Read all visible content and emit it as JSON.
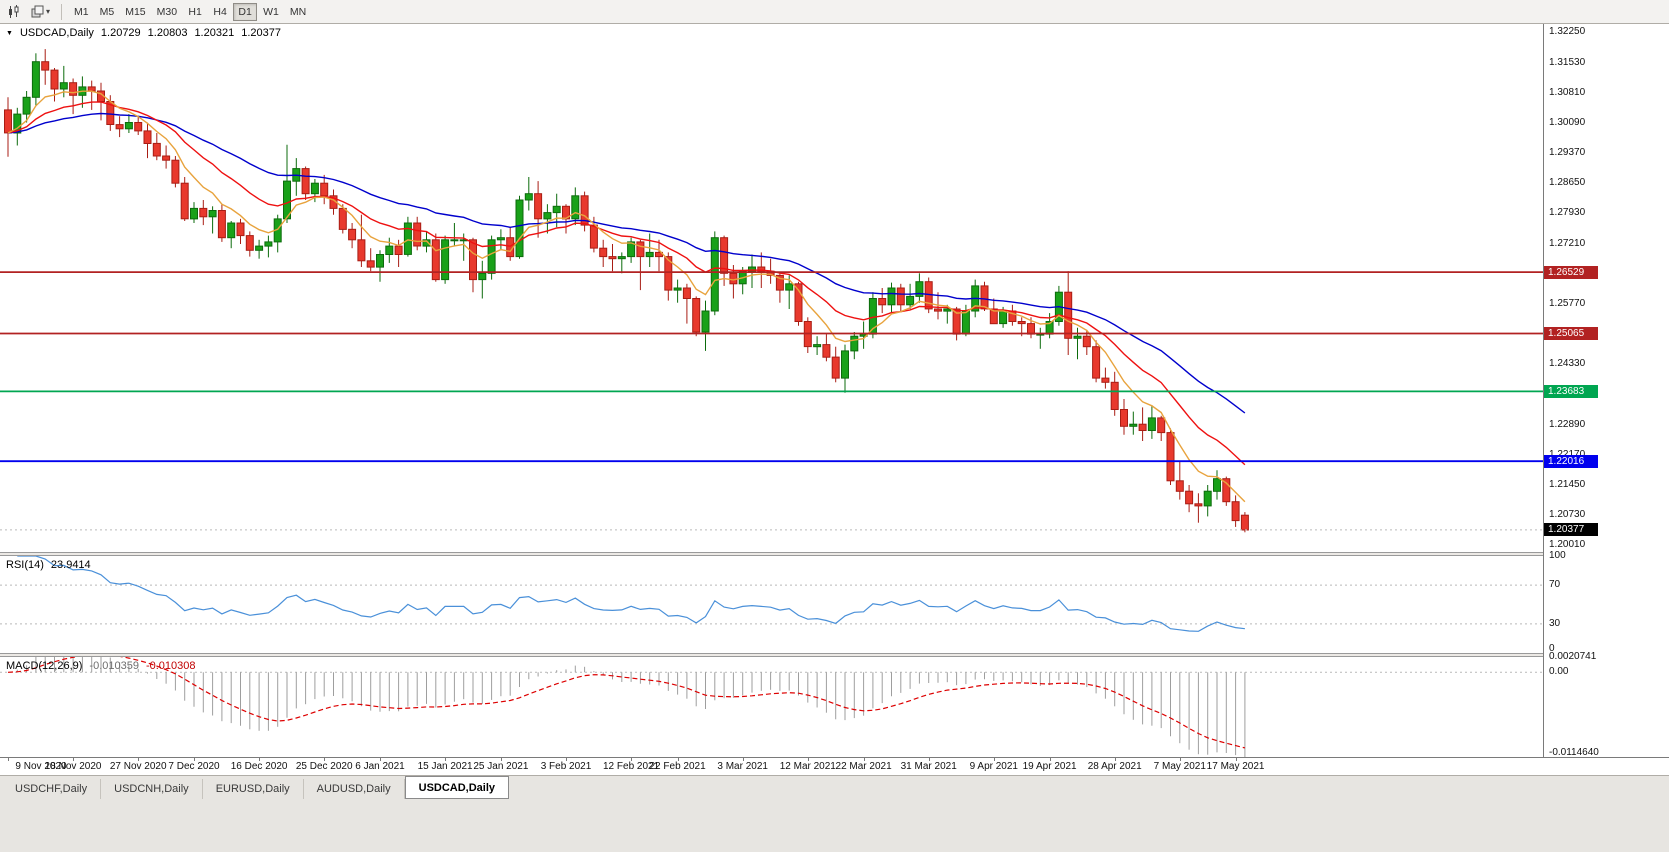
{
  "icons": {
    "collapse": "▼",
    "caret": "▾"
  },
  "toolbar": {
    "icon_buttons": [
      "candlestick-chart-icon",
      "chart-style-dropdown-icon"
    ],
    "timeframes": [
      "M1",
      "M5",
      "M15",
      "M30",
      "H1",
      "H4",
      "D1",
      "W1",
      "MN"
    ],
    "active_timeframe": "D1"
  },
  "tabs": [
    {
      "label": "USDCHF,Daily",
      "active": false
    },
    {
      "label": "USDCNH,Daily",
      "active": false
    },
    {
      "label": "EURUSD,Daily",
      "active": false
    },
    {
      "label": "AUDUSD,Daily",
      "active": false
    },
    {
      "label": "USDCAD,Daily",
      "active": true
    }
  ],
  "chart_data": [
    {
      "type": "candlestick",
      "header": {
        "symbol": "USDCAD,Daily",
        "open": "1.20729",
        "high": "1.20803",
        "low": "1.20321",
        "close": "1.20377"
      },
      "ylim": [
        1.1985,
        1.3245
      ],
      "y_ticks": [
        "1.32250",
        "1.31530",
        "1.30810",
        "1.30090",
        "1.29370",
        "1.28650",
        "1.27930",
        "1.27210",
        "1.26490",
        "1.25770",
        "1.25050",
        "1.24330",
        "1.23610",
        "1.22890",
        "1.22170",
        "1.21450",
        "1.20730",
        "1.20010"
      ],
      "x_ticks": [
        {
          "i": 0,
          "label": "9 Nov 2020"
        },
        {
          "i": 7,
          "label": "18 Nov 2020"
        },
        {
          "i": 14,
          "label": "27 Nov 2020"
        },
        {
          "i": 20,
          "label": "7 Dec 2020"
        },
        {
          "i": 27,
          "label": "16 Dec 2020"
        },
        {
          "i": 34,
          "label": "25 Dec 2020"
        },
        {
          "i": 40,
          "label": "6 Jan 2021"
        },
        {
          "i": 47,
          "label": "15 Jan 2021"
        },
        {
          "i": 53,
          "label": "25 Jan 2021"
        },
        {
          "i": 60,
          "label": "3 Feb 2021"
        },
        {
          "i": 67,
          "label": "12 Feb 2021"
        },
        {
          "i": 72,
          "label": "22 Feb 2021"
        },
        {
          "i": 79,
          "label": "3 Mar 2021"
        },
        {
          "i": 86,
          "label": "12 Mar 2021"
        },
        {
          "i": 92,
          "label": "22 Mar 2021"
        },
        {
          "i": 99,
          "label": "31 Mar 2021"
        },
        {
          "i": 106,
          "label": "9 Apr 2021"
        },
        {
          "i": 112,
          "label": "19 Apr 2021"
        },
        {
          "i": 119,
          "label": "28 Apr 2021"
        },
        {
          "i": 126,
          "label": "7 May 2021"
        },
        {
          "i": 132,
          "label": "17 May 2021"
        }
      ],
      "hlines": [
        {
          "value": 1.26529,
          "label": "1.26529",
          "color": "#b22222"
        },
        {
          "value": 1.25065,
          "label": "1.25065",
          "color": "#b22222"
        },
        {
          "value": 1.23683,
          "label": "1.23683",
          "color": "#00a651"
        },
        {
          "value": 1.22016,
          "label": "1.22016",
          "color": "#0000ee"
        }
      ],
      "bid": {
        "value": 1.20377,
        "label": "1.20377",
        "color": "#000000"
      },
      "moving_averages": [
        {
          "period": 34,
          "color": "#0000cc"
        },
        {
          "period": 16,
          "color": "#ee1111"
        },
        {
          "period": 7,
          "color": "#e8a33d"
        }
      ],
      "colors": {
        "up": "#19a119",
        "up_border": "#0c6b0c",
        "down": "#e8392d",
        "down_border": "#a81d14"
      },
      "ohlc": [
        [
          1.304,
          1.307,
          1.2928,
          1.2985
        ],
        [
          1.2985,
          1.3045,
          1.2955,
          1.303
        ],
        [
          1.303,
          1.3085,
          1.301,
          1.307
        ],
        [
          1.307,
          1.3175,
          1.305,
          1.3155
        ],
        [
          1.3155,
          1.3185,
          1.31,
          1.3135
        ],
        [
          1.3135,
          1.314,
          1.306,
          1.309
        ],
        [
          1.309,
          1.3145,
          1.307,
          1.3105
        ],
        [
          1.3105,
          1.3115,
          1.303,
          1.3075
        ],
        [
          1.3075,
          1.312,
          1.3045,
          1.3095
        ],
        [
          1.3095,
          1.311,
          1.304,
          1.3085
        ],
        [
          1.3085,
          1.3105,
          1.3015,
          1.306
        ],
        [
          1.306,
          1.3075,
          1.299,
          1.3005
        ],
        [
          1.3005,
          1.3025,
          1.2975,
          1.2995
        ],
        [
          1.2995,
          1.303,
          1.2985,
          1.301
        ],
        [
          1.301,
          1.3025,
          1.298,
          1.299
        ],
        [
          1.299,
          1.301,
          1.2925,
          1.296
        ],
        [
          1.296,
          1.2985,
          1.292,
          1.293
        ],
        [
          1.293,
          1.2955,
          1.29,
          1.292
        ],
        [
          1.292,
          1.293,
          1.2855,
          1.2865
        ],
        [
          1.2865,
          1.288,
          1.2775,
          1.278
        ],
        [
          1.278,
          1.282,
          1.277,
          1.2805
        ],
        [
          1.2805,
          1.2825,
          1.2765,
          1.2785
        ],
        [
          1.2785,
          1.281,
          1.2745,
          1.28
        ],
        [
          1.28,
          1.2815,
          1.2725,
          1.2735
        ],
        [
          1.2735,
          1.2775,
          1.271,
          1.277
        ],
        [
          1.277,
          1.278,
          1.272,
          1.274
        ],
        [
          1.274,
          1.275,
          1.269,
          1.2705
        ],
        [
          1.2705,
          1.273,
          1.2685,
          1.2715
        ],
        [
          1.2715,
          1.274,
          1.2688,
          1.2725
        ],
        [
          1.2725,
          1.279,
          1.27,
          1.278
        ],
        [
          1.278,
          1.2957,
          1.277,
          1.287
        ],
        [
          1.287,
          1.2925,
          1.2835,
          1.29
        ],
        [
          1.29,
          1.2905,
          1.2825,
          1.284
        ],
        [
          1.284,
          1.2875,
          1.282,
          1.2865
        ],
        [
          1.2865,
          1.2885,
          1.2815,
          1.2835
        ],
        [
          1.2835,
          1.285,
          1.279,
          1.2805
        ],
        [
          1.2805,
          1.2815,
          1.2745,
          1.2755
        ],
        [
          1.2755,
          1.277,
          1.271,
          1.273
        ],
        [
          1.273,
          1.279,
          1.2665,
          1.268
        ],
        [
          1.268,
          1.271,
          1.2655,
          1.2665
        ],
        [
          1.2665,
          1.2705,
          1.263,
          1.2695
        ],
        [
          1.2695,
          1.2735,
          1.2675,
          1.2715
        ],
        [
          1.2715,
          1.273,
          1.2665,
          1.2695
        ],
        [
          1.2695,
          1.2785,
          1.269,
          1.277
        ],
        [
          1.277,
          1.2785,
          1.2705,
          1.2715
        ],
        [
          1.2715,
          1.275,
          1.27,
          1.273
        ],
        [
          1.273,
          1.2745,
          1.263,
          1.2635
        ],
        [
          1.2635,
          1.274,
          1.2625,
          1.273
        ],
        [
          1.273,
          1.277,
          1.2715,
          1.273
        ],
        [
          1.273,
          1.2745,
          1.268,
          1.273
        ],
        [
          1.273,
          1.2735,
          1.2605,
          1.2635
        ],
        [
          1.2635,
          1.268,
          1.259,
          1.265
        ],
        [
          1.265,
          1.274,
          1.2635,
          1.273
        ],
        [
          1.273,
          1.2755,
          1.2705,
          1.2735
        ],
        [
          1.2735,
          1.276,
          1.268,
          1.269
        ],
        [
          1.269,
          1.2835,
          1.2685,
          1.2825
        ],
        [
          1.2825,
          1.288,
          1.28,
          1.284
        ],
        [
          1.284,
          1.287,
          1.2735,
          1.278
        ],
        [
          1.278,
          1.2815,
          1.2745,
          1.2795
        ],
        [
          1.2795,
          1.284,
          1.276,
          1.281
        ],
        [
          1.281,
          1.2815,
          1.2745,
          1.278
        ],
        [
          1.278,
          1.2855,
          1.2765,
          1.2835
        ],
        [
          1.2835,
          1.2845,
          1.275,
          1.2765
        ],
        [
          1.2765,
          1.2785,
          1.27,
          1.271
        ],
        [
          1.271,
          1.273,
          1.2665,
          1.269
        ],
        [
          1.269,
          1.272,
          1.2655,
          1.2685
        ],
        [
          1.2685,
          1.27,
          1.265,
          1.269
        ],
        [
          1.269,
          1.2735,
          1.2675,
          1.2725
        ],
        [
          1.2725,
          1.273,
          1.261,
          1.269
        ],
        [
          1.269,
          1.2745,
          1.2665,
          1.27
        ],
        [
          1.27,
          1.273,
          1.2655,
          1.269
        ],
        [
          1.269,
          1.27,
          1.2585,
          1.261
        ],
        [
          1.261,
          1.2635,
          1.258,
          1.2615
        ],
        [
          1.2615,
          1.2625,
          1.253,
          1.259
        ],
        [
          1.259,
          1.2595,
          1.25,
          1.251
        ],
        [
          1.251,
          1.2585,
          1.2465,
          1.256
        ],
        [
          1.256,
          1.275,
          1.255,
          1.2735
        ],
        [
          1.2735,
          1.274,
          1.262,
          1.265
        ],
        [
          1.265,
          1.267,
          1.259,
          1.2625
        ],
        [
          1.2625,
          1.2665,
          1.26,
          1.2655
        ],
        [
          1.2655,
          1.2695,
          1.2615,
          1.2665
        ],
        [
          1.2665,
          1.27,
          1.2615,
          1.2655
        ],
        [
          1.2655,
          1.2685,
          1.2625,
          1.2645
        ],
        [
          1.2645,
          1.265,
          1.258,
          1.261
        ],
        [
          1.261,
          1.2645,
          1.2565,
          1.2625
        ],
        [
          1.2625,
          1.263,
          1.2525,
          1.2535
        ],
        [
          1.2535,
          1.2545,
          1.246,
          1.2475
        ],
        [
          1.2475,
          1.25,
          1.2455,
          1.248
        ],
        [
          1.248,
          1.2505,
          1.244,
          1.245
        ],
        [
          1.245,
          1.2475,
          1.239,
          1.24
        ],
        [
          1.24,
          1.248,
          1.2365,
          1.2465
        ],
        [
          1.2465,
          1.251,
          1.2445,
          1.25
        ],
        [
          1.25,
          1.2535,
          1.247,
          1.2505
        ],
        [
          1.2505,
          1.2605,
          1.2495,
          1.259
        ],
        [
          1.259,
          1.2615,
          1.2555,
          1.2575
        ],
        [
          1.2575,
          1.2628,
          1.2555,
          1.2615
        ],
        [
          1.2615,
          1.2625,
          1.256,
          1.2575
        ],
        [
          1.2575,
          1.2625,
          1.2565,
          1.2595
        ],
        [
          1.2595,
          1.265,
          1.258,
          1.263
        ],
        [
          1.263,
          1.264,
          1.2555,
          1.2565
        ],
        [
          1.2565,
          1.2605,
          1.254,
          1.256
        ],
        [
          1.256,
          1.2575,
          1.253,
          1.2565
        ],
        [
          1.2565,
          1.257,
          1.249,
          1.2505
        ],
        [
          1.2505,
          1.2575,
          1.25,
          1.256
        ],
        [
          1.256,
          1.2635,
          1.2545,
          1.262
        ],
        [
          1.262,
          1.263,
          1.256,
          1.2565
        ],
        [
          1.2565,
          1.259,
          1.253,
          1.253
        ],
        [
          1.253,
          1.257,
          1.252,
          1.256
        ],
        [
          1.256,
          1.2575,
          1.2525,
          1.2535
        ],
        [
          1.2535,
          1.2545,
          1.25,
          1.253
        ],
        [
          1.253,
          1.2545,
          1.2495,
          1.2505
        ],
        [
          1.2505,
          1.252,
          1.247,
          1.2505
        ],
        [
          1.2505,
          1.2555,
          1.2495,
          1.2535
        ],
        [
          1.2535,
          1.262,
          1.2525,
          1.2605
        ],
        [
          1.2605,
          1.2655,
          1.2455,
          1.2495
        ],
        [
          1.2495,
          1.252,
          1.2445,
          1.25
        ],
        [
          1.25,
          1.2515,
          1.2455,
          1.2475
        ],
        [
          1.2475,
          1.249,
          1.239,
          1.24
        ],
        [
          1.24,
          1.2425,
          1.2375,
          1.239
        ],
        [
          1.239,
          1.2415,
          1.231,
          1.2325
        ],
        [
          1.2325,
          1.235,
          1.2265,
          1.2285
        ],
        [
          1.2285,
          1.232,
          1.2265,
          1.229
        ],
        [
          1.229,
          1.233,
          1.225,
          1.2275
        ],
        [
          1.2275,
          1.2335,
          1.2255,
          1.2305
        ],
        [
          1.2305,
          1.231,
          1.225,
          1.227
        ],
        [
          1.227,
          1.228,
          1.2145,
          1.2155
        ],
        [
          1.2155,
          1.22,
          1.211,
          1.213
        ],
        [
          1.213,
          1.2145,
          1.208,
          1.21
        ],
        [
          1.21,
          1.2125,
          1.2055,
          1.2095
        ],
        [
          1.2095,
          1.2145,
          1.207,
          1.213
        ],
        [
          1.213,
          1.218,
          1.211,
          1.216
        ],
        [
          1.216,
          1.2165,
          1.2095,
          1.2105
        ],
        [
          1.2105,
          1.212,
          1.2045,
          1.206
        ],
        [
          1.20729,
          1.20803,
          1.20321,
          1.20377
        ]
      ]
    },
    {
      "type": "line",
      "label": "RSI(14)",
      "value": "23.9414",
      "period": 14,
      "color": "#4a90d9",
      "levels": [
        70,
        30
      ],
      "y_ticks": [
        "100",
        "70",
        "30",
        "0"
      ],
      "ylim": [
        0,
        100
      ]
    },
    {
      "type": "macd",
      "label": "MACD(12,26,9)",
      "main_value": "-0.010359",
      "signal_value": "-0.010308",
      "fast": 12,
      "slow": 26,
      "signal": 9,
      "histogram_color": "#9e9e9e",
      "signal_color": "#dd0000",
      "y_ticks": [
        "0.0020741",
        "0.00",
        "-0.0114640"
      ],
      "ylim": [
        -0.011464,
        0.0020741
      ]
    }
  ]
}
